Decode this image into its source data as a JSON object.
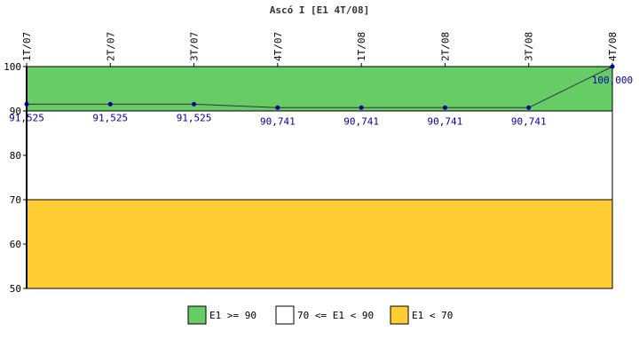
{
  "chart_data": {
    "type": "line",
    "title": "Ascó I [E1 4T/08]",
    "categories": [
      "1T/07",
      "2T/07",
      "3T/07",
      "4T/07",
      "1T/08",
      "2T/08",
      "3T/08",
      "4T/08"
    ],
    "series": [
      {
        "values": [
          91.525,
          91.525,
          91.525,
          90.741,
          90.741,
          90.741,
          90.741,
          100.0
        ]
      }
    ],
    "data_labels": [
      "91,525",
      "91,525",
      "91,525",
      "90,741",
      "90,741",
      "90,741",
      "90,741",
      "100,000"
    ],
    "ylim": [
      50,
      100
    ],
    "yticks": [
      "50",
      "60",
      "70",
      "80",
      "90",
      "100"
    ],
    "bands": [
      {
        "from": 90,
        "to": 100,
        "color": "#66cc66",
        "label": "E1 >= 90"
      },
      {
        "from": 70,
        "to": 90,
        "color": "#ffffff",
        "label": "70 <= E1 < 90"
      },
      {
        "from": 50,
        "to": 70,
        "color": "#ffcc33",
        "label": "E1 < 70"
      }
    ],
    "line_color": "#333333",
    "marker_color": "#000099",
    "grid": false,
    "legend_position": "bottom"
  }
}
